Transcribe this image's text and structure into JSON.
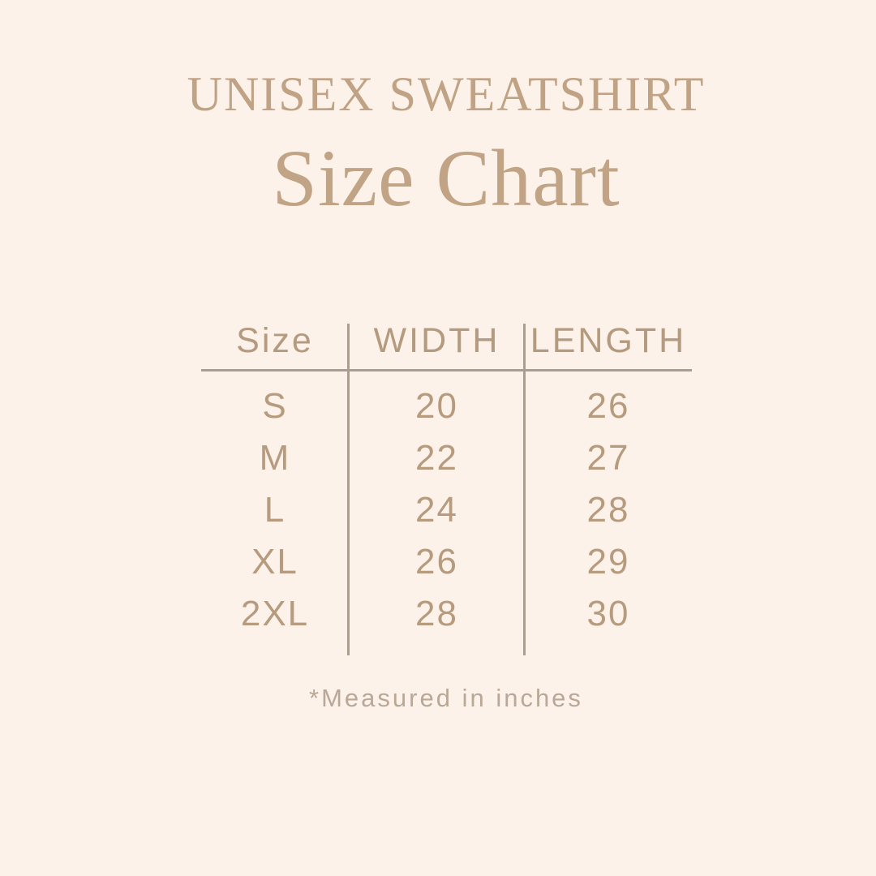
{
  "page": {
    "background_color": "#fcf2e9",
    "accent_color": "#c0a285",
    "line_color": "#ab9d8f",
    "muted_color": "#b9a897"
  },
  "header": {
    "eyebrow": "UNISEX SWEATSHIRT",
    "title": "Size Chart"
  },
  "table": {
    "columns": [
      "Size",
      "WIDTH",
      "LENGTH"
    ],
    "rows": [
      {
        "size": "S",
        "width": "20",
        "length": "26"
      },
      {
        "size": "M",
        "width": "22",
        "length": "27"
      },
      {
        "size": "L",
        "width": "24",
        "length": "28"
      },
      {
        "size": "XL",
        "width": "26",
        "length": "29"
      },
      {
        "size": "2XL",
        "width": "28",
        "length": "30"
      }
    ]
  },
  "footnote": "*Measured in inches"
}
